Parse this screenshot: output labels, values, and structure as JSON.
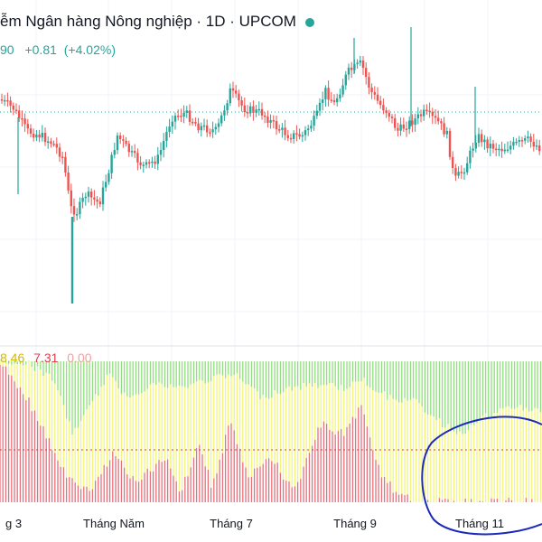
{
  "header": {
    "title": "ễm Ngân hàng Nông nghiệp · 1D · UPCOM",
    "price_fragment": "90",
    "change": "+0.81",
    "change_pct": "(+4.02%)",
    "market_status_color": "#26a69a"
  },
  "indicator": {
    "values": [
      "8.46",
      "7.31",
      "0.00"
    ],
    "colors": [
      "#e0c010",
      "#e0404a",
      "#f0a0a0"
    ]
  },
  "x_axis": {
    "labels": [
      "g 3",
      "Tháng Năm",
      "Tháng 7",
      "Tháng 9",
      "Tháng 11"
    ]
  },
  "colors": {
    "up": "#26a69a",
    "down": "#ef5350",
    "ind_green": "#8fe07a",
    "ind_yellow": "#f4f47a",
    "ind_red": "#e8707a",
    "annotation": "#1b2bb8"
  }
}
